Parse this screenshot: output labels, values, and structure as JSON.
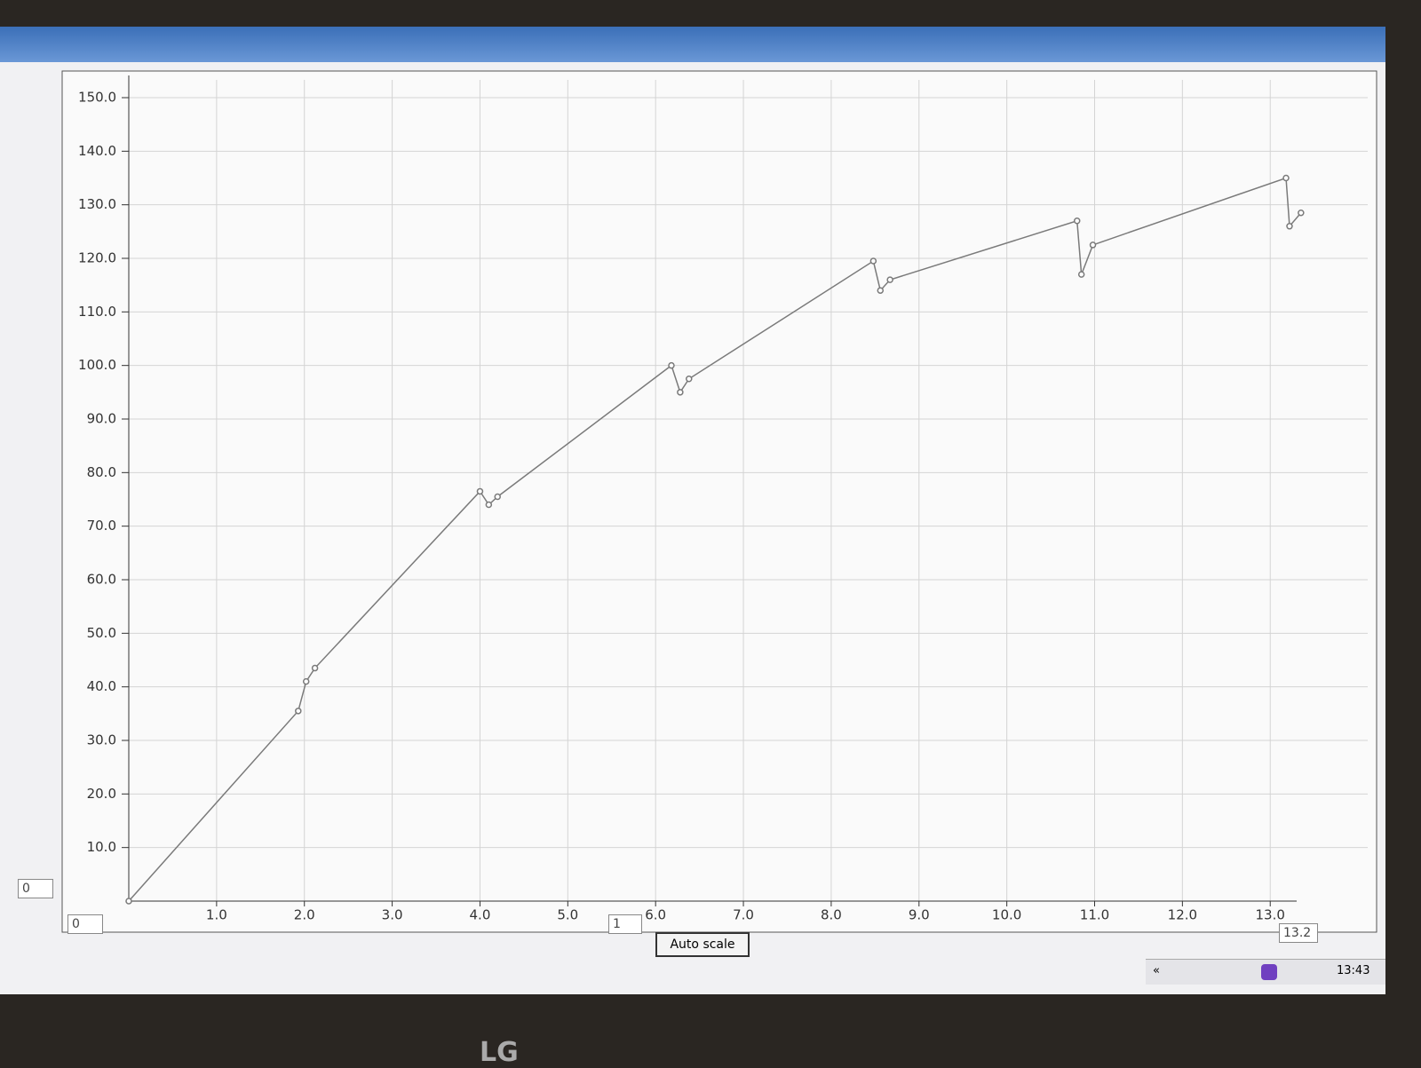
{
  "chart_data": {
    "type": "line",
    "x": [
      0,
      1.93,
      2.02,
      2.12,
      4.0,
      4.1,
      4.2,
      6.18,
      6.28,
      6.38,
      8.48,
      8.56,
      8.67,
      10.8,
      10.85,
      10.98,
      13.18,
      13.22,
      13.35
    ],
    "values": [
      0,
      35.5,
      41,
      43.5,
      76.5,
      74,
      75.5,
      100,
      95,
      97.5,
      119.5,
      114,
      116,
      127,
      117,
      122.5,
      135,
      126,
      128.5
    ],
    "color": "#7a7a7a",
    "xlim": [
      0,
      13.2
    ],
    "ylim": [
      0,
      150
    ],
    "xticks": [
      {
        "value": 1,
        "label": "1.0"
      },
      {
        "value": 2,
        "label": "2.0"
      },
      {
        "value": 3,
        "label": "3.0"
      },
      {
        "value": 4,
        "label": "4.0"
      },
      {
        "value": 5,
        "label": "5.0"
      },
      {
        "value": 6,
        "label": "6.0"
      },
      {
        "value": 7,
        "label": "7.0"
      },
      {
        "value": 8,
        "label": "8.0"
      },
      {
        "value": 9,
        "label": "9.0"
      },
      {
        "value": 10,
        "label": "10.0"
      },
      {
        "value": 11,
        "label": "11.0"
      },
      {
        "value": 12,
        "label": "12.0"
      },
      {
        "value": 13,
        "label": "13.0"
      }
    ],
    "yticks": [
      {
        "value": 10,
        "label": "10.0"
      },
      {
        "value": 20,
        "label": "20.0"
      },
      {
        "value": 30,
        "label": "30.0"
      },
      {
        "value": 40,
        "label": "40.0"
      },
      {
        "value": 50,
        "label": "50.0"
      },
      {
        "value": 60,
        "label": "60.0"
      },
      {
        "value": 70,
        "label": "70.0"
      },
      {
        "value": 80,
        "label": "80.0"
      },
      {
        "value": 90,
        "label": "90.0"
      },
      {
        "value": 100,
        "label": "100.0"
      },
      {
        "value": 110,
        "label": "110.0"
      },
      {
        "value": 120,
        "label": "120.0"
      },
      {
        "value": 130,
        "label": "130.0"
      },
      {
        "value": 140,
        "label": "140.0"
      },
      {
        "value": 150,
        "label": "150.0"
      }
    ],
    "grid": true
  },
  "controls": {
    "y_min": "0",
    "x_min": "0",
    "step": "1",
    "auto_scale": "Auto scale",
    "x_max": "13.2"
  },
  "taskbar": {
    "expand": "«",
    "clock": "13:43"
  },
  "bezel": {
    "brand": "LG"
  }
}
